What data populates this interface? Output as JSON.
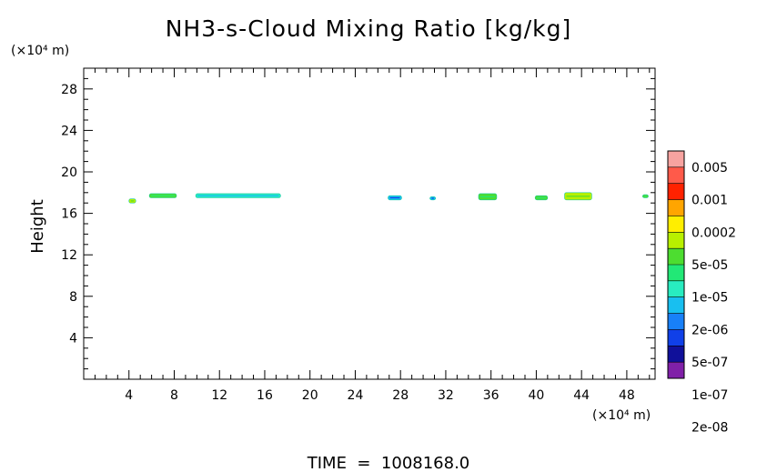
{
  "chart_data": {
    "type": "heatmap",
    "title": "NH3-s-Cloud Mixing Ratio [kg/kg]",
    "xlabel": "",
    "ylabel": "Height",
    "x_unit": "(×10⁴ m)",
    "y_unit": "(×10⁴ m)",
    "xlim": [
      0,
      50.5
    ],
    "ylim": [
      0,
      30
    ],
    "x_ticks": [
      4,
      8,
      12,
      16,
      20,
      24,
      28,
      32,
      36,
      40,
      44,
      48
    ],
    "y_ticks": [
      4,
      8,
      12,
      16,
      20,
      24,
      28
    ],
    "grid": false,
    "colorbar": {
      "labels": [
        "0.005",
        "0.001",
        "0.0002",
        "5e-05",
        "1e-05",
        "2e-06",
        "5e-07",
        "1e-07",
        "2e-08"
      ],
      "colors": [
        "#f7a3a0",
        "#ff5a4a",
        "#ff2200",
        "#ffa500",
        "#ffee00",
        "#b8f000",
        "#4ddd30",
        "#22e876",
        "#28ecc0",
        "#18bff0",
        "#1880f8",
        "#1040e8",
        "#10109a",
        "#8020a8"
      ]
    },
    "cloud_patches": [
      {
        "x": [
          4.0,
          4.6
        ],
        "y": [
          17.0,
          17.4
        ],
        "level": "5e-05"
      },
      {
        "x": [
          5.8,
          8.2
        ],
        "y": [
          17.5,
          17.9
        ],
        "level": "1e-05"
      },
      {
        "x": [
          9.9,
          17.4
        ],
        "y": [
          17.5,
          17.9
        ],
        "level": "2e-06"
      },
      {
        "x": [
          26.9,
          28.1
        ],
        "y": [
          17.3,
          17.7
        ],
        "level": "5e-07"
      },
      {
        "x": [
          30.6,
          31.1
        ],
        "y": [
          17.3,
          17.6
        ],
        "level": "5e-07"
      },
      {
        "x": [
          34.9,
          36.5
        ],
        "y": [
          17.3,
          17.9
        ],
        "level": "1e-05"
      },
      {
        "x": [
          39.9,
          41.0
        ],
        "y": [
          17.3,
          17.7
        ],
        "level": "1e-05"
      },
      {
        "x": [
          42.5,
          44.9
        ],
        "y": [
          17.3,
          18.0
        ],
        "level": "5e-05"
      },
      {
        "x": [
          49.4,
          49.9
        ],
        "y": [
          17.5,
          17.8
        ],
        "level": "1e-05"
      }
    ]
  },
  "footer": {
    "time_label": "TIME  =  1008168.0"
  }
}
